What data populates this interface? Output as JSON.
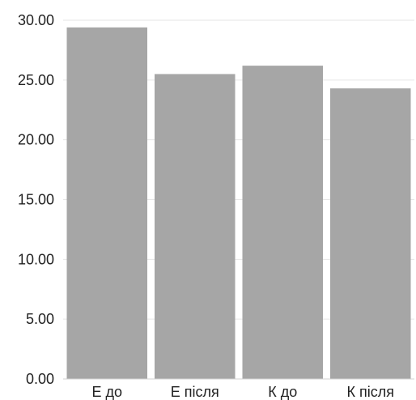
{
  "chart_data": {
    "type": "bar",
    "title": "",
    "xlabel": "",
    "ylabel": "",
    "categories": [
      "Е до",
      "Е після",
      "К до",
      "К після"
    ],
    "values": [
      29.4,
      25.5,
      26.2,
      24.3
    ],
    "ylim": [
      0,
      30
    ],
    "yticks": [
      "0.00",
      "5.00",
      "10.00",
      "15.00",
      "20.00",
      "25.00",
      "30.00"
    ],
    "ytick_values": [
      0,
      5,
      10,
      15,
      20,
      25,
      30
    ],
    "grid": true,
    "legend": "none",
    "bar_color": "#a6a6a6",
    "grid_color": "#e6e6e6",
    "text_color": "#222222"
  }
}
